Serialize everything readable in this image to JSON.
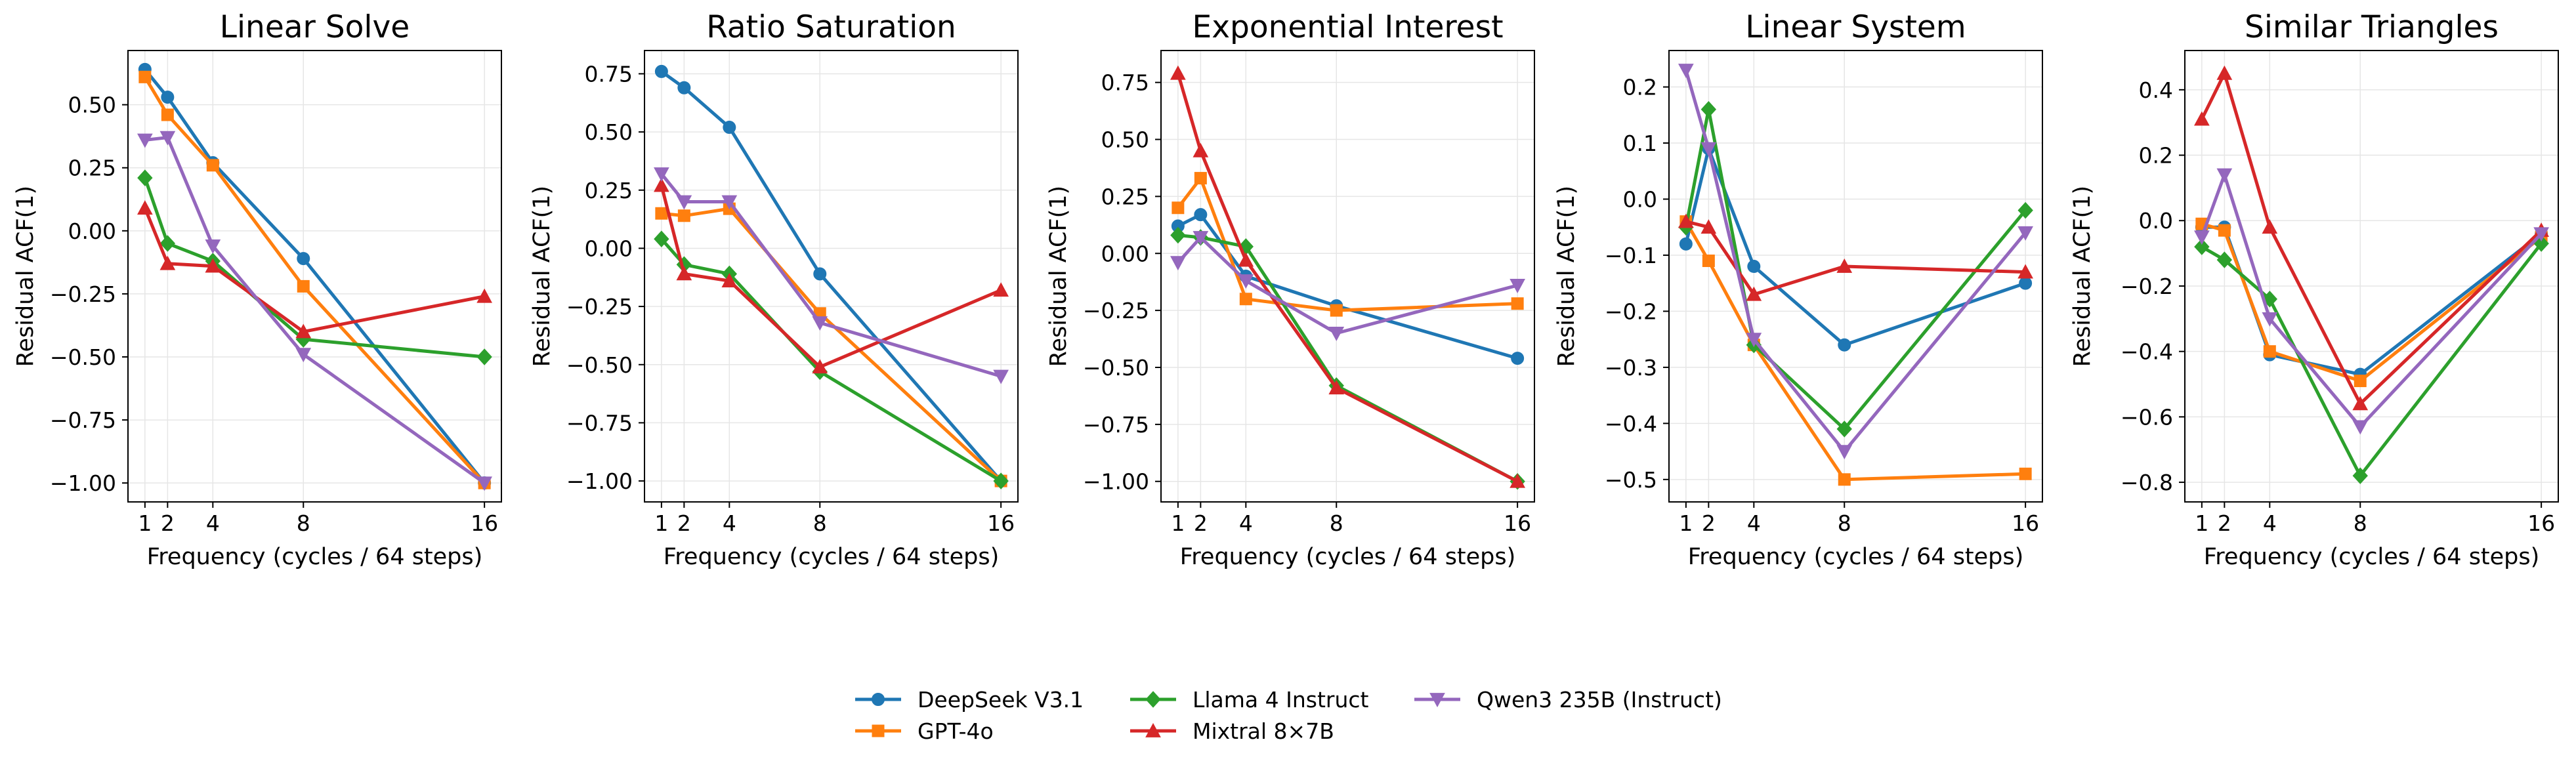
{
  "chart_data": [
    {
      "type": "line",
      "title": "Linear Solve",
      "xlabel": "Frequency (cycles / 64 steps)",
      "ylabel": "Residual ACF(1)",
      "x": [
        1,
        2,
        4,
        8,
        16
      ],
      "xlim": [
        0.25,
        16.75
      ],
      "ylim": [
        -1.075,
        0.715
      ],
      "yticks": [
        0.5,
        0.25,
        0.0,
        -0.25,
        -0.5,
        -0.75,
        -1.0
      ],
      "ytick_labels": [
        "0.50",
        "0.25",
        "0.00",
        "−0.25",
        "−0.50",
        "−0.75",
        "−1.00"
      ],
      "grid": true,
      "series": [
        {
          "name": "DeepSeek V3.1",
          "values": [
            0.64,
            0.53,
            0.27,
            -0.11,
            -1.0
          ]
        },
        {
          "name": "GPT-4o",
          "values": [
            0.61,
            0.46,
            0.26,
            -0.22,
            -1.0
          ]
        },
        {
          "name": "Llama 4 Instruct",
          "values": [
            0.21,
            -0.05,
            -0.12,
            -0.43,
            -0.5
          ]
        },
        {
          "name": "Mixtral 8×7B",
          "values": [
            0.09,
            -0.13,
            -0.14,
            -0.4,
            -0.26
          ]
        },
        {
          "name": "Qwen3 235B (Instruct)",
          "values": [
            0.36,
            0.37,
            -0.06,
            -0.49,
            -1.0
          ]
        }
      ]
    },
    {
      "type": "line",
      "title": "Ratio Saturation",
      "xlabel": "Frequency (cycles / 64 steps)",
      "ylabel": "Residual ACF(1)",
      "x": [
        1,
        2,
        4,
        8,
        16
      ],
      "xlim": [
        0.25,
        16.75
      ],
      "ylim": [
        -1.09,
        0.85
      ],
      "yticks": [
        0.75,
        0.5,
        0.25,
        0.0,
        -0.25,
        -0.5,
        -0.75,
        -1.0
      ],
      "ytick_labels": [
        "0.75",
        "0.50",
        "0.25",
        "0.00",
        "−0.25",
        "−0.50",
        "−0.75",
        "−1.00"
      ],
      "grid": true,
      "series": [
        {
          "name": "DeepSeek V3.1",
          "values": [
            0.76,
            0.69,
            0.52,
            -0.11,
            -1.0
          ]
        },
        {
          "name": "GPT-4o",
          "values": [
            0.15,
            0.14,
            0.17,
            -0.28,
            -1.0
          ]
        },
        {
          "name": "Llama 4 Instruct",
          "values": [
            0.04,
            -0.07,
            -0.11,
            -0.53,
            -1.0
          ]
        },
        {
          "name": "Mixtral 8×7B",
          "values": [
            0.27,
            -0.11,
            -0.14,
            -0.51,
            -0.18
          ]
        },
        {
          "name": "Qwen3 235B (Instruct)",
          "values": [
            0.32,
            0.2,
            0.2,
            -0.32,
            -0.55
          ]
        }
      ]
    },
    {
      "type": "line",
      "title": "Exponential Interest",
      "xlabel": "Frequency (cycles / 64 steps)",
      "ylabel": "Residual ACF(1)",
      "x": [
        1,
        2,
        4,
        8,
        16
      ],
      "xlim": [
        0.25,
        16.75
      ],
      "ylim": [
        -1.09,
        0.89
      ],
      "yticks": [
        0.75,
        0.5,
        0.25,
        0.0,
        -0.25,
        -0.5,
        -0.75,
        -1.0
      ],
      "ytick_labels": [
        "0.75",
        "0.50",
        "0.25",
        "0.00",
        "−0.25",
        "−0.50",
        "−0.75",
        "−1.00"
      ],
      "grid": true,
      "series": [
        {
          "name": "DeepSeek V3.1",
          "values": [
            0.12,
            0.17,
            -0.1,
            -0.23,
            -0.46
          ]
        },
        {
          "name": "GPT-4o",
          "values": [
            0.2,
            0.33,
            -0.2,
            -0.25,
            -0.22
          ]
        },
        {
          "name": "Llama 4 Instruct",
          "values": [
            0.08,
            0.07,
            0.03,
            -0.58,
            -1.0
          ]
        },
        {
          "name": "Mixtral 8×7B",
          "values": [
            0.79,
            0.45,
            -0.03,
            -0.59,
            -1.0
          ]
        },
        {
          "name": "Qwen3 235B (Instruct)",
          "values": [
            -0.04,
            0.07,
            -0.12,
            -0.35,
            -0.14
          ]
        }
      ]
    },
    {
      "type": "line",
      "title": "Linear System",
      "xlabel": "Frequency (cycles / 64 steps)",
      "ylabel": "Residual ACF(1)",
      "x": [
        1,
        2,
        4,
        8,
        16
      ],
      "xlim": [
        0.25,
        16.75
      ],
      "ylim": [
        -0.54,
        0.265
      ],
      "yticks": [
        0.2,
        0.1,
        0.0,
        -0.1,
        -0.2,
        -0.3,
        -0.4,
        -0.5
      ],
      "ytick_labels": [
        "0.2",
        "0.1",
        "0.0",
        "−0.1",
        "−0.2",
        "−0.3",
        "−0.4",
        "−0.5"
      ],
      "grid": true,
      "series": [
        {
          "name": "DeepSeek V3.1",
          "values": [
            -0.08,
            0.09,
            -0.12,
            -0.26,
            -0.15
          ]
        },
        {
          "name": "GPT-4o",
          "values": [
            -0.04,
            -0.11,
            -0.26,
            -0.5,
            -0.49
          ]
        },
        {
          "name": "Llama 4 Instruct",
          "values": [
            -0.05,
            0.16,
            -0.26,
            -0.41,
            -0.02
          ]
        },
        {
          "name": "Mixtral 8×7B",
          "values": [
            -0.04,
            -0.05,
            -0.17,
            -0.12,
            -0.13
          ]
        },
        {
          "name": "Qwen3 235B (Instruct)",
          "values": [
            0.23,
            0.09,
            -0.25,
            -0.45,
            -0.06
          ]
        }
      ]
    },
    {
      "type": "line",
      "title": "Similar Triangles",
      "xlabel": "Frequency (cycles / 64 steps)",
      "ylabel": "Residual ACF(1)",
      "x": [
        1,
        2,
        4,
        8,
        16
      ],
      "xlim": [
        0.25,
        16.75
      ],
      "ylim": [
        -0.86,
        0.52
      ],
      "yticks": [
        0.4,
        0.2,
        0.0,
        -0.2,
        -0.4,
        -0.6,
        -0.8
      ],
      "ytick_labels": [
        "0.4",
        "0.2",
        "0.0",
        "−0.2",
        "−0.4",
        "−0.6",
        "−0.8"
      ],
      "grid": true,
      "series": [
        {
          "name": "DeepSeek V3.1",
          "values": [
            -0.02,
            -0.02,
            -0.41,
            -0.47,
            -0.04
          ]
        },
        {
          "name": "GPT-4o",
          "values": [
            -0.01,
            -0.03,
            -0.4,
            -0.49,
            -0.05
          ]
        },
        {
          "name": "Llama 4 Instruct",
          "values": [
            -0.08,
            -0.12,
            -0.24,
            -0.78,
            -0.07
          ]
        },
        {
          "name": "Mixtral 8×7B",
          "values": [
            0.31,
            0.45,
            -0.02,
            -0.56,
            -0.03
          ]
        },
        {
          "name": "Qwen3 235B (Instruct)",
          "values": [
            -0.05,
            0.14,
            -0.3,
            -0.63,
            -0.04
          ]
        }
      ]
    }
  ],
  "xticks": [
    1,
    2,
    4,
    8,
    16
  ],
  "xtick_labels": [
    "1",
    "2",
    "4",
    "8",
    "16"
  ],
  "legend": {
    "placement": "bottom-center",
    "entries": [
      {
        "name": "DeepSeek V3.1",
        "color": "#1f77b4",
        "marker": "circle"
      },
      {
        "name": "GPT-4o",
        "color": "#ff7f0e",
        "marker": "square"
      },
      {
        "name": "Llama 4 Instruct",
        "color": "#2ca02c",
        "marker": "diamond"
      },
      {
        "name": "Mixtral 8×7B",
        "color": "#d62728",
        "marker": "triangle-up"
      },
      {
        "name": "Qwen3 235B (Instruct)",
        "color": "#9467bd",
        "marker": "triangle-down"
      }
    ]
  }
}
